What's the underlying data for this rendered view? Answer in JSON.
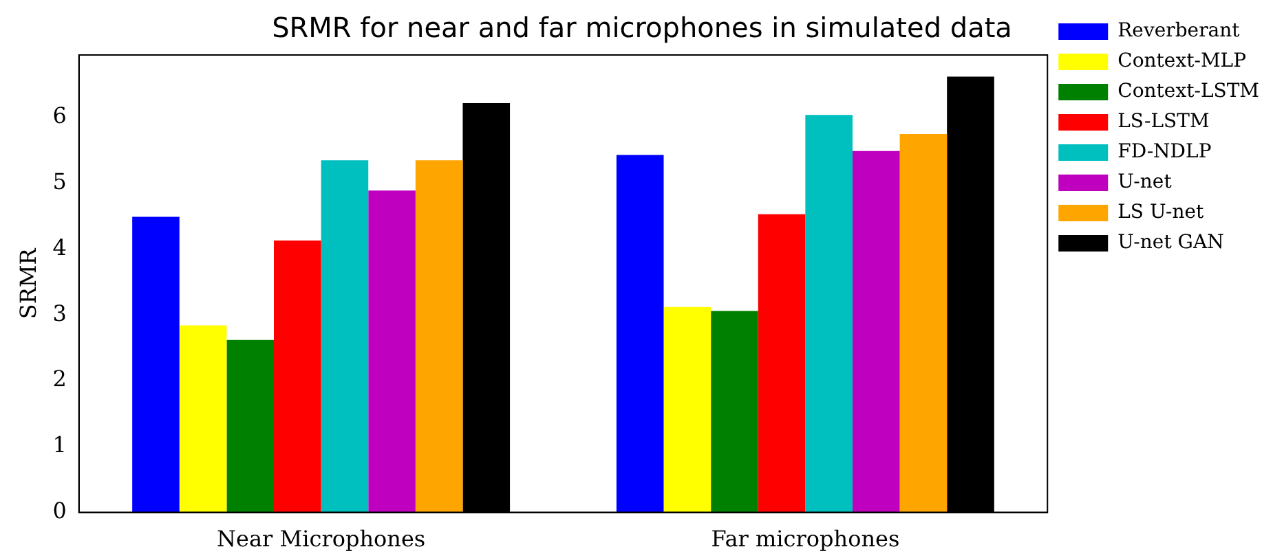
{
  "chart_data": {
    "type": "bar",
    "title": "SRMR for near and far microphones in simulated data",
    "ylabel": "SRMR",
    "categories": [
      "Near Microphones",
      "Far microphones"
    ],
    "series": [
      {
        "name": "Reverberant",
        "color": "#0000ff",
        "values": [
          4.49,
          5.43
        ]
      },
      {
        "name": "Context-MLP",
        "color": "#ffff00",
        "values": [
          2.84,
          3.12
        ]
      },
      {
        "name": "Context-LSTM",
        "color": "#008000",
        "values": [
          2.62,
          3.06
        ]
      },
      {
        "name": "LS-LSTM",
        "color": "#ff0000",
        "values": [
          4.13,
          4.53
        ]
      },
      {
        "name": "FD-NDLP",
        "color": "#00bfbf",
        "values": [
          5.35,
          6.04
        ]
      },
      {
        "name": "U-net",
        "color": "#bf00bf",
        "values": [
          4.89,
          5.49
        ]
      },
      {
        "name": "LS U-net",
        "color": "#ffa500",
        "values": [
          5.35,
          5.75
        ]
      },
      {
        "name": "U-net GAN",
        "color": "#000000",
        "values": [
          6.22,
          6.62
        ]
      }
    ],
    "ylim": [
      0,
      6.95
    ],
    "yticks": [
      0,
      1,
      2,
      3,
      4,
      5,
      6
    ],
    "grid": false,
    "legend": "top right"
  }
}
